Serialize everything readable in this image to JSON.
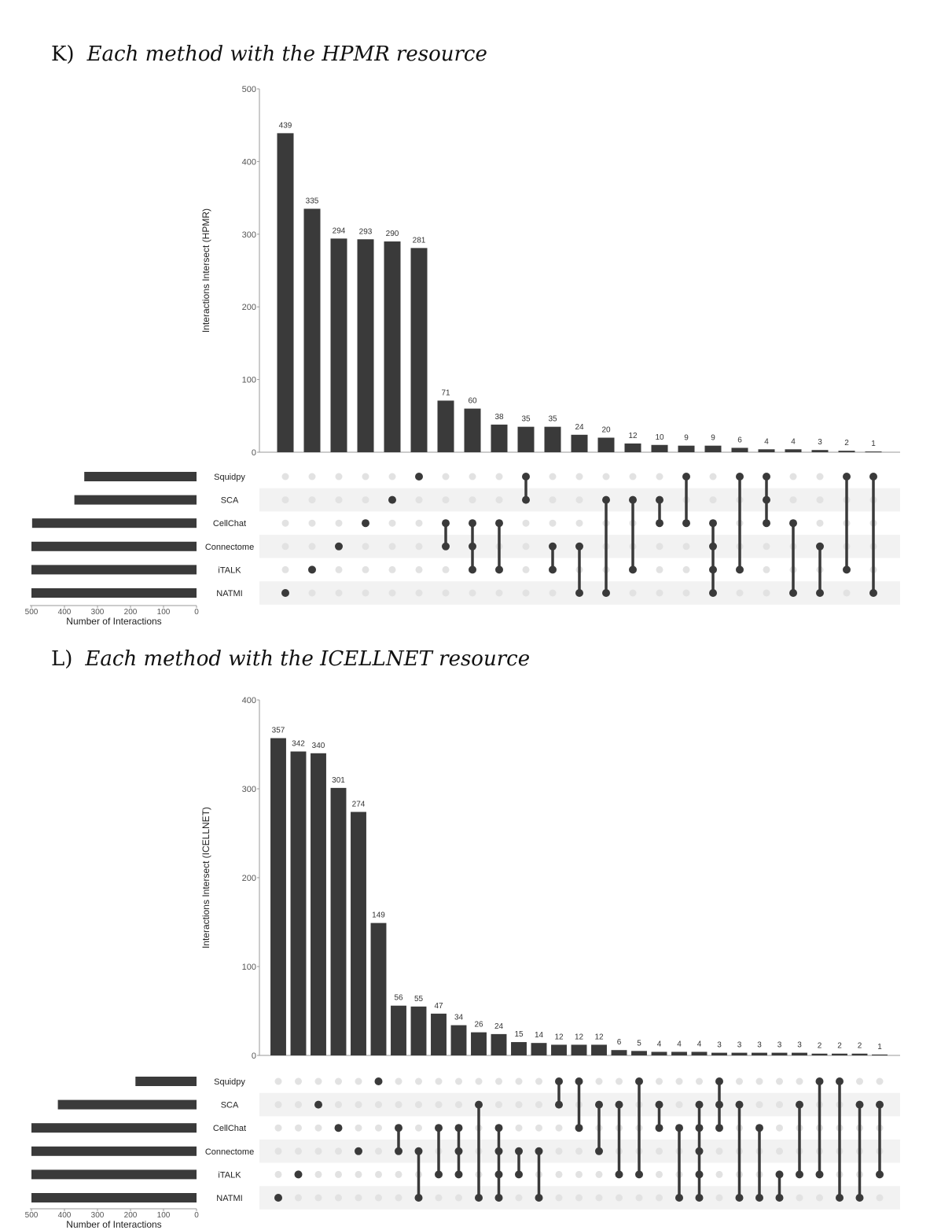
{
  "panels": [
    {
      "letter": "K)",
      "subtitle": "Each method with the HPMR resource"
    },
    {
      "letter": "L)",
      "subtitle": "Each method with the ICELLNET resource"
    }
  ],
  "chart_data": [
    {
      "type": "upset",
      "sets": [
        "Squidpy",
        "SCA",
        "CellChat",
        "Connectome",
        "iTALK",
        "NATMI"
      ],
      "set_sizes": [
        340,
        370,
        498,
        500,
        500,
        500
      ],
      "set_size_xlabel": "Number of Interactions",
      "set_size_ticks": [
        500,
        400,
        300,
        200,
        100,
        0
      ],
      "ylabel": "Interactions Intersect (HPMR)",
      "ylim": [
        0,
        500
      ],
      "yticks": [
        0,
        100,
        200,
        300,
        400,
        500
      ],
      "intersections": [
        {
          "value": 439,
          "sets": [
            "NATMI"
          ]
        },
        {
          "value": 335,
          "sets": [
            "iTALK"
          ]
        },
        {
          "value": 294,
          "sets": [
            "Connectome"
          ]
        },
        {
          "value": 293,
          "sets": [
            "CellChat"
          ]
        },
        {
          "value": 290,
          "sets": [
            "SCA"
          ]
        },
        {
          "value": 281,
          "sets": [
            "Squidpy"
          ]
        },
        {
          "value": 71,
          "sets": [
            "CellChat",
            "Connectome"
          ]
        },
        {
          "value": 60,
          "sets": [
            "CellChat",
            "Connectome",
            "iTALK"
          ]
        },
        {
          "value": 38,
          "sets": [
            "CellChat",
            "iTALK"
          ]
        },
        {
          "value": 35,
          "sets": [
            "Squidpy",
            "SCA"
          ]
        },
        {
          "value": 35,
          "sets": [
            "Connectome",
            "iTALK"
          ]
        },
        {
          "value": 24,
          "sets": [
            "Connectome",
            "NATMI"
          ]
        },
        {
          "value": 20,
          "sets": [
            "SCA",
            "NATMI"
          ]
        },
        {
          "value": 12,
          "sets": [
            "SCA",
            "iTALK"
          ]
        },
        {
          "value": 10,
          "sets": [
            "SCA",
            "CellChat"
          ]
        },
        {
          "value": 9,
          "sets": [
            "Squidpy",
            "CellChat"
          ]
        },
        {
          "value": 9,
          "sets": [
            "CellChat",
            "Connectome",
            "iTALK",
            "NATMI"
          ]
        },
        {
          "value": 6,
          "sets": [
            "Squidpy",
            "iTALK"
          ]
        },
        {
          "value": 4,
          "sets": [
            "Squidpy",
            "SCA",
            "CellChat"
          ]
        },
        {
          "value": 4,
          "sets": [
            "CellChat",
            "NATMI"
          ]
        },
        {
          "value": 3,
          "sets": [
            "Connectome",
            "NATMI"
          ]
        },
        {
          "value": 2,
          "sets": [
            "Squidpy",
            "iTALK"
          ]
        },
        {
          "value": 1,
          "sets": [
            "Squidpy",
            "NATMI"
          ]
        }
      ]
    },
    {
      "type": "upset",
      "sets": [
        "Squidpy",
        "SCA",
        "CellChat",
        "Connectome",
        "iTALK",
        "NATMI"
      ],
      "set_sizes": [
        185,
        420,
        500,
        500,
        500,
        500
      ],
      "set_size_xlabel": "Number of Interactions",
      "set_size_ticks": [
        500,
        400,
        300,
        200,
        100,
        0
      ],
      "ylabel": "Interactions Intersect (ICELLNET)",
      "ylim": [
        0,
        400
      ],
      "yticks": [
        0,
        100,
        200,
        300,
        400
      ],
      "intersections": [
        {
          "value": 357,
          "sets": [
            "NATMI"
          ]
        },
        {
          "value": 342,
          "sets": [
            "iTALK"
          ]
        },
        {
          "value": 340,
          "sets": [
            "SCA"
          ]
        },
        {
          "value": 301,
          "sets": [
            "CellChat"
          ]
        },
        {
          "value": 274,
          "sets": [
            "Connectome"
          ]
        },
        {
          "value": 149,
          "sets": [
            "Squidpy"
          ]
        },
        {
          "value": 56,
          "sets": [
            "CellChat",
            "Connectome"
          ]
        },
        {
          "value": 55,
          "sets": [
            "Connectome",
            "NATMI"
          ]
        },
        {
          "value": 47,
          "sets": [
            "CellChat",
            "iTALK"
          ]
        },
        {
          "value": 34,
          "sets": [
            "CellChat",
            "Connectome",
            "iTALK"
          ]
        },
        {
          "value": 26,
          "sets": [
            "SCA",
            "NATMI"
          ]
        },
        {
          "value": 24,
          "sets": [
            "CellChat",
            "Connectome",
            "iTALK",
            "NATMI"
          ]
        },
        {
          "value": 15,
          "sets": [
            "Connectome",
            "iTALK"
          ]
        },
        {
          "value": 14,
          "sets": [
            "Connectome",
            "NATMI"
          ]
        },
        {
          "value": 12,
          "sets": [
            "Squidpy",
            "SCA"
          ]
        },
        {
          "value": 12,
          "sets": [
            "Squidpy",
            "CellChat"
          ]
        },
        {
          "value": 12,
          "sets": [
            "SCA",
            "Connectome"
          ]
        },
        {
          "value": 6,
          "sets": [
            "SCA",
            "iTALK"
          ]
        },
        {
          "value": 5,
          "sets": [
            "Squidpy",
            "iTALK"
          ]
        },
        {
          "value": 4,
          "sets": [
            "SCA",
            "CellChat"
          ]
        },
        {
          "value": 4,
          "sets": [
            "CellChat",
            "NATMI"
          ]
        },
        {
          "value": 4,
          "sets": [
            "SCA",
            "CellChat",
            "Connectome",
            "iTALK",
            "NATMI"
          ]
        },
        {
          "value": 3,
          "sets": [
            "Squidpy",
            "SCA",
            "CellChat"
          ]
        },
        {
          "value": 3,
          "sets": [
            "SCA",
            "NATMI"
          ]
        },
        {
          "value": 3,
          "sets": [
            "CellChat",
            "NATMI"
          ]
        },
        {
          "value": 3,
          "sets": [
            "iTALK",
            "NATMI"
          ]
        },
        {
          "value": 3,
          "sets": [
            "SCA",
            "iTALK"
          ]
        },
        {
          "value": 2,
          "sets": [
            "Squidpy",
            "iTALK"
          ]
        },
        {
          "value": 2,
          "sets": [
            "Squidpy",
            "NATMI"
          ]
        },
        {
          "value": 2,
          "sets": [
            "SCA",
            "NATMI"
          ]
        },
        {
          "value": 1,
          "sets": [
            "SCA",
            "iTALK"
          ]
        }
      ]
    }
  ]
}
